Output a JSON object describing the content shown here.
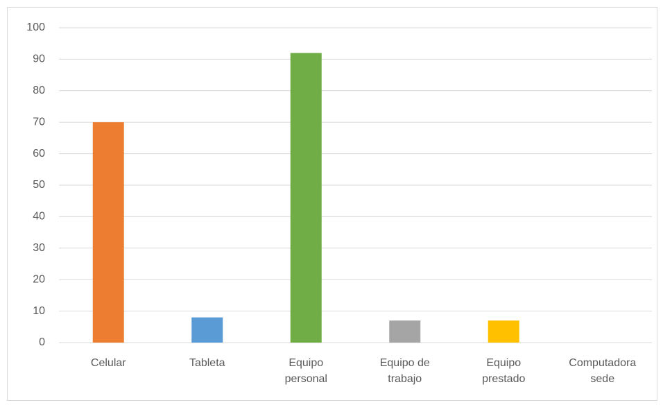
{
  "chart_data": {
    "type": "bar",
    "categories": [
      "Celular",
      "Tableta",
      "Equipo\npersonal",
      "Equipo de\ntrabajo",
      "Equipo\nprestado",
      "Computadora\nsede"
    ],
    "values": [
      70,
      8,
      92,
      7,
      7,
      0
    ],
    "colors": [
      "#ed7d31",
      "#5b9bd5",
      "#70ad47",
      "#a5a5a5",
      "#ffc000",
      "#4472c4"
    ],
    "ylim": [
      0,
      100
    ],
    "yticks": [
      0,
      10,
      20,
      30,
      40,
      50,
      60,
      70,
      80,
      90,
      100
    ],
    "grid": true
  }
}
